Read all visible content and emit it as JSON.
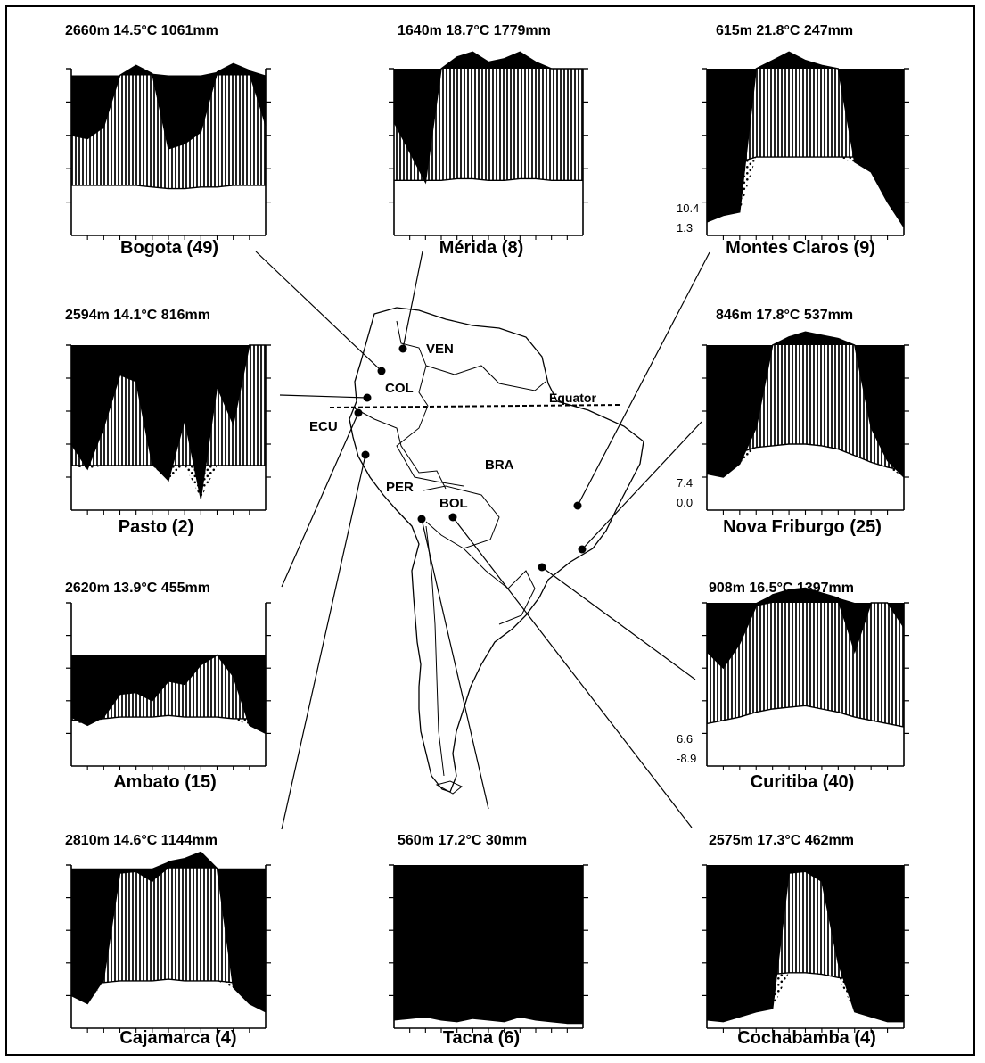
{
  "figure": {
    "equator_label": "Equator",
    "countries": [
      "VEN",
      "COL",
      "ECU",
      "PER",
      "BOL",
      "BRA"
    ]
  },
  "chart_data": [
    {
      "type": "area",
      "id": "bogota",
      "station": "Bogota (49)",
      "altitude": "2660m",
      "mean_temp": "14.5°C",
      "annual_precip": "1061mm",
      "axis_labels": []
    },
    {
      "type": "area",
      "id": "merida",
      "station": "Mérida (8)",
      "altitude": "1640m",
      "mean_temp": "18.7°C",
      "annual_precip": "1779mm",
      "axis_labels": []
    },
    {
      "type": "area",
      "id": "montes",
      "station": "Montes Claros (9)",
      "altitude": "615m",
      "mean_temp": "21.8°C",
      "annual_precip": "247mm",
      "axis_labels": [
        "10.4",
        "1.3"
      ]
    },
    {
      "type": "area",
      "id": "pasto",
      "station": "Pasto (2)",
      "altitude": "2594m",
      "mean_temp": "14.1°C",
      "annual_precip": "816mm",
      "axis_labels": []
    },
    {
      "type": "area",
      "id": "nova",
      "station": "Nova Friburgo (25)",
      "altitude": "846m",
      "mean_temp": "17.8°C",
      "annual_precip": "537mm",
      "axis_labels": [
        "7.4",
        "0.0"
      ]
    },
    {
      "type": "area",
      "id": "ambato",
      "station": "Ambato (15)",
      "altitude": "2620m",
      "mean_temp": "13.9°C",
      "annual_precip": "455mm",
      "axis_labels": []
    },
    {
      "type": "area",
      "id": "curitiba",
      "station": "Curitiba (40)",
      "altitude": "908m",
      "mean_temp": "16.5°C",
      "annual_precip": "1397mm",
      "axis_labels": [
        "6.6",
        "-8.9"
      ]
    },
    {
      "type": "area",
      "id": "cajamarca",
      "station": "Cajamarca (4)",
      "altitude": "2810m",
      "mean_temp": "14.6°C",
      "annual_precip": "1144mm",
      "axis_labels": []
    },
    {
      "type": "area",
      "id": "tacna",
      "station": "Tacna (6)",
      "altitude": "560m",
      "mean_temp": "17.2°C",
      "annual_precip": "30mm",
      "axis_labels": []
    },
    {
      "type": "area",
      "id": "cochabamba",
      "station": "Cochabamba (4)",
      "altitude": "2575m",
      "mean_temp": "17.3°C",
      "annual_precip": "462mm",
      "axis_labels": []
    }
  ]
}
